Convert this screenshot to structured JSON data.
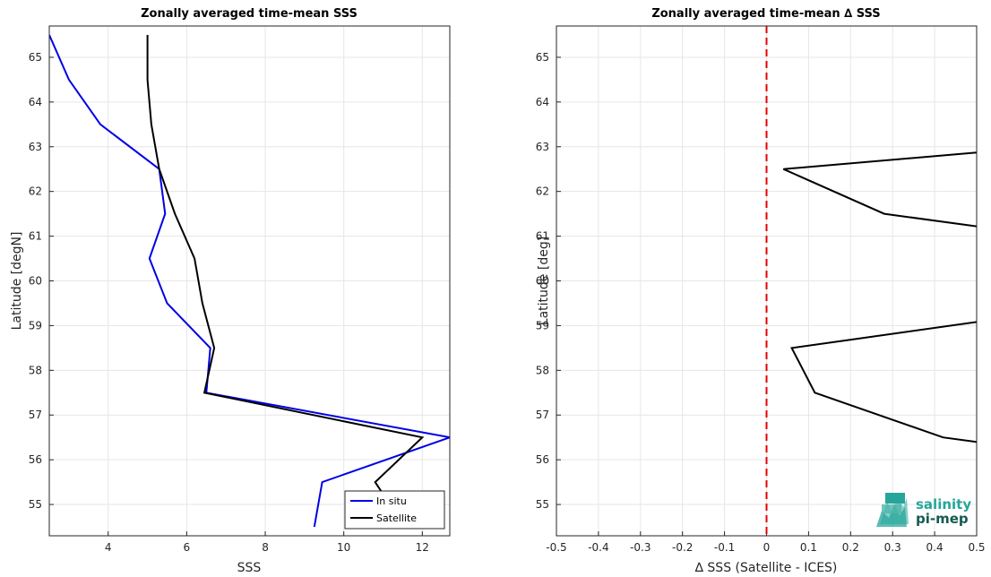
{
  "chart_data": [
    {
      "type": "line",
      "title": "Zonally averaged time-mean SSS",
      "xlabel": "SSS",
      "ylabel": "Latitude [degN]",
      "xlim": [
        2.5,
        12.7
      ],
      "ylim": [
        54.3,
        65.7
      ],
      "xticks": [
        "4",
        "6",
        "8",
        "10",
        "12"
      ],
      "yticks": [
        "55",
        "56",
        "57",
        "58",
        "59",
        "60",
        "61",
        "62",
        "63",
        "64",
        "65"
      ],
      "grid": true,
      "legend_location": "lower-right",
      "series": [
        {
          "name": "In situ",
          "color": "#0000e6",
          "x": [
            2.5,
            3.0,
            3.8,
            5.3,
            5.45,
            5.05,
            5.5,
            6.6,
            6.5,
            12.7,
            9.45,
            9.25
          ],
          "y": [
            65.5,
            64.5,
            63.5,
            62.5,
            61.5,
            60.5,
            59.5,
            58.5,
            57.5,
            56.5,
            55.5,
            54.5
          ]
        },
        {
          "name": "Satellite",
          "color": "#000000",
          "x": [
            5.0,
            5.0,
            5.1,
            5.3,
            5.7,
            6.2,
            6.4,
            6.7,
            6.45,
            12.0,
            10.8,
            10.95
          ],
          "y": [
            65.5,
            64.5,
            63.5,
            62.5,
            61.5,
            60.5,
            59.5,
            58.5,
            57.5,
            56.5,
            55.5,
            55.3
          ]
        }
      ]
    },
    {
      "type": "line",
      "title": "Zonally averaged time-mean ∆ SSS",
      "xlabel": "∆ SSS (Satellite - ICES)",
      "ylabel": "Latitude [deg]",
      "xlim": [
        -0.5,
        0.5
      ],
      "ylim": [
        54.3,
        65.7
      ],
      "xticks": [
        "-0.5",
        "-0.4",
        "-0.3",
        "-0.2",
        "-0.1",
        "0",
        "0.1",
        "0.2",
        "0.3",
        "0.4",
        "0.5"
      ],
      "yticks": [
        "55",
        "56",
        "57",
        "58",
        "59",
        "60",
        "61",
        "62",
        "63",
        "64",
        "65"
      ],
      "grid": true,
      "reference_line": {
        "x": 0,
        "color": "#e60000",
        "style": "dashed"
      },
      "series": [
        {
          "color": "#000000",
          "segments": [
            {
              "x": [
                0.5,
                0.04,
                0.28,
                0.5
              ],
              "y": [
                62.87,
                62.5,
                61.5,
                61.22
              ]
            },
            {
              "x": [
                0.5,
                0.06,
                0.115,
                0.42,
                0.5
              ],
              "y": [
                59.08,
                58.5,
                57.5,
                56.5,
                56.4
              ]
            }
          ]
        }
      ]
    }
  ],
  "logo": {
    "line1": "salinity",
    "line2": "pi-mep",
    "color_light": "#26a69a",
    "color_dark": "#145a52"
  }
}
